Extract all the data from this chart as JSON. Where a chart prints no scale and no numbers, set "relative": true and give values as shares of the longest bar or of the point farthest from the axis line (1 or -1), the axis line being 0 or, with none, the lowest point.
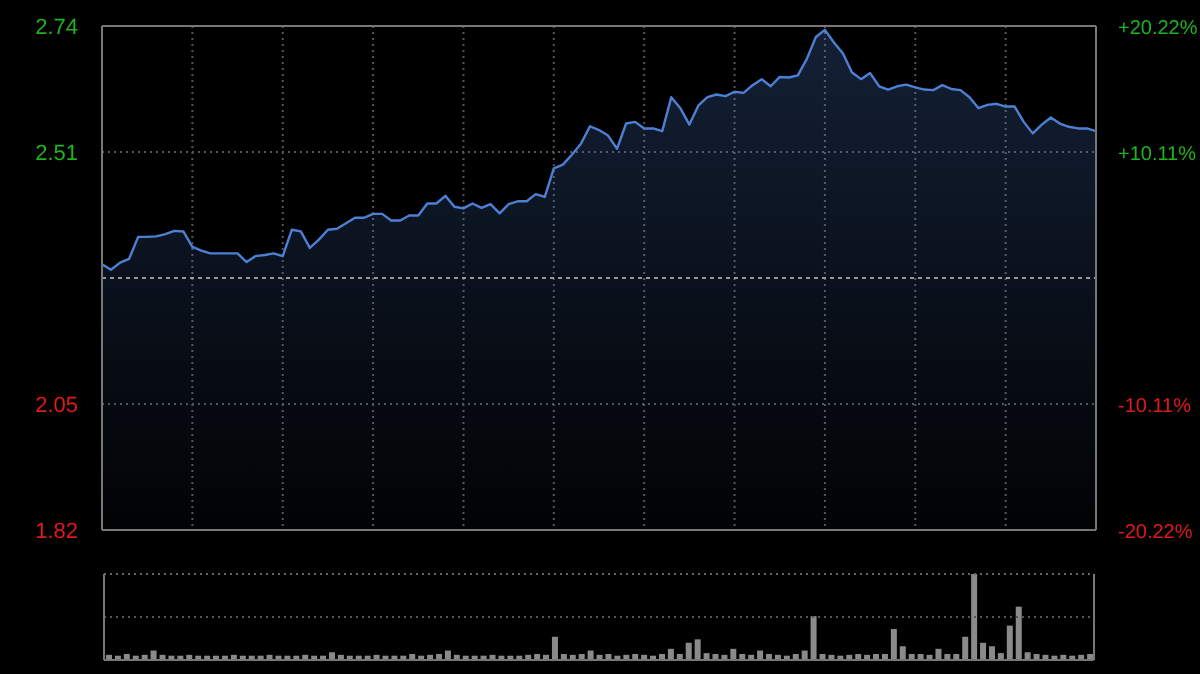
{
  "chart_data": [
    {
      "type": "area",
      "categories": [
        null,
        null,
        null,
        null,
        null,
        null,
        null,
        null,
        null,
        null,
        null,
        null,
        null,
        null,
        null,
        null,
        null,
        null,
        null,
        null,
        null,
        null,
        null,
        null,
        null,
        null,
        null,
        null,
        null,
        null,
        null,
        null,
        null,
        null,
        null,
        null,
        null,
        null,
        null,
        null,
        null,
        null,
        null,
        null,
        null,
        null,
        null,
        null,
        null,
        null,
        null,
        null,
        null,
        null,
        null,
        null,
        null,
        null,
        null,
        null,
        null,
        null,
        null,
        null,
        null,
        null,
        null,
        null,
        null,
        null,
        null,
        null,
        null,
        null,
        null,
        null,
        null,
        null,
        null,
        null,
        null,
        null,
        null,
        null,
        null,
        null,
        null,
        null,
        null,
        null,
        null,
        null,
        null,
        null,
        null,
        null,
        null,
        null,
        null,
        null,
        null,
        null,
        null,
        null,
        null,
        null,
        null,
        null,
        null,
        null,
        null
      ],
      "series": [
        {
          "color": "#4d80d4",
          "values": [
            2.305,
            2.295,
            2.308,
            2.315,
            2.355,
            2.355,
            2.356,
            2.36,
            2.366,
            2.365,
            2.337,
            2.33,
            2.325,
            2.325,
            2.325,
            2.325,
            2.309,
            2.32,
            2.322,
            2.325,
            2.32,
            2.368,
            2.365,
            2.335,
            2.35,
            2.368,
            2.37,
            2.38,
            2.39,
            2.39,
            2.397,
            2.397,
            2.385,
            2.385,
            2.394,
            2.394,
            2.416,
            2.416,
            2.43,
            2.41,
            2.407,
            2.416,
            2.408,
            2.415,
            2.398,
            2.415,
            2.42,
            2.42,
            2.433,
            2.428,
            2.48,
            2.487,
            2.505,
            2.525,
            2.557,
            2.55,
            2.54,
            2.516,
            2.562,
            2.565,
            2.553,
            2.553,
            2.548,
            2.61,
            2.59,
            2.56,
            2.595,
            2.61,
            2.615,
            2.612,
            2.62,
            2.618,
            2.632,
            2.643,
            2.63,
            2.647,
            2.646,
            2.65,
            2.68,
            2.72,
            2.733,
            2.71,
            2.69,
            2.655,
            2.643,
            2.654,
            2.63,
            2.624,
            2.63,
            2.633,
            2.628,
            2.624,
            2.623,
            2.632,
            2.625,
            2.623,
            2.61,
            2.59,
            2.596,
            2.598,
            2.593,
            2.593,
            2.565,
            2.544,
            2.56,
            2.573,
            2.562,
            2.556,
            2.553,
            2.553,
            2.548
          ]
        }
      ],
      "ylim": [
        1.82,
        2.74
      ],
      "yticks": [
        1.82,
        2.05,
        2.51,
        2.74
      ],
      "y2lim": [
        -20.22,
        20.22
      ],
      "y2ticks": [
        {
          "value": -20.22,
          "label": "-20.22%"
        },
        {
          "value": -10.11,
          "label": "-10.11%"
        },
        {
          "value": 10.11,
          "label": "+10.11%"
        },
        {
          "value": 20.22,
          "label": "+20.22%"
        }
      ],
      "ref_lines": [
        {
          "axis": "y",
          "value": 2.28,
          "label": null,
          "color": "#9a9a9a",
          "line_style": "dashed"
        }
      ],
      "grid": true,
      "tick_labels": "y",
      "legend": false
    },
    {
      "type": "bar",
      "relative": true,
      "ref_lines": [
        {
          "axis": "y",
          "value": 0.5,
          "label": null,
          "color": "#555555",
          "line_style": "dotted"
        }
      ],
      "tick_labels": false,
      "legend": false,
      "color": "#8a8a8a",
      "categories": [
        null,
        null,
        null,
        null,
        null,
        null,
        null,
        null,
        null,
        null,
        null,
        null,
        null,
        null,
        null,
        null,
        null,
        null,
        null,
        null,
        null,
        null,
        null,
        null,
        null,
        null,
        null,
        null,
        null,
        null,
        null,
        null,
        null,
        null,
        null,
        null,
        null,
        null,
        null,
        null,
        null,
        null,
        null,
        null,
        null,
        null,
        null,
        null,
        null,
        null,
        null,
        null,
        null,
        null,
        null,
        null,
        null,
        null,
        null,
        null,
        null,
        null,
        null,
        null,
        null,
        null,
        null,
        null,
        null,
        null,
        null,
        null,
        null,
        null,
        null,
        null,
        null,
        null,
        null,
        null,
        null,
        null,
        null,
        null,
        null,
        null,
        null,
        null,
        null,
        null,
        null,
        null,
        null,
        null,
        null,
        null,
        null,
        null,
        null,
        null,
        null,
        null,
        null,
        null,
        null,
        null,
        null,
        null,
        null,
        null,
        null
      ],
      "values": [
        0.06,
        0.05,
        0.07,
        0.05,
        0.06,
        0.11,
        0.06,
        0.05,
        0.05,
        0.06,
        0.05,
        0.05,
        0.05,
        0.05,
        0.06,
        0.05,
        0.05,
        0.05,
        0.06,
        0.05,
        0.05,
        0.05,
        0.06,
        0.05,
        0.05,
        0.09,
        0.06,
        0.05,
        0.05,
        0.05,
        0.06,
        0.05,
        0.05,
        0.05,
        0.07,
        0.05,
        0.06,
        0.07,
        0.11,
        0.06,
        0.05,
        0.05,
        0.05,
        0.06,
        0.05,
        0.05,
        0.05,
        0.06,
        0.07,
        0.06,
        0.27,
        0.07,
        0.06,
        0.07,
        0.11,
        0.06,
        0.07,
        0.05,
        0.06,
        0.07,
        0.06,
        0.05,
        0.07,
        0.13,
        0.07,
        0.2,
        0.24,
        0.08,
        0.07,
        0.06,
        0.13,
        0.07,
        0.06,
        0.11,
        0.07,
        0.06,
        0.05,
        0.07,
        0.11,
        0.51,
        0.07,
        0.06,
        0.05,
        0.06,
        0.07,
        0.06,
        0.07,
        0.07,
        0.36,
        0.16,
        0.07,
        0.07,
        0.06,
        0.13,
        0.07,
        0.07,
        0.27,
        1,
        0.2,
        0.16,
        0.08,
        0.4,
        0.62,
        0.09,
        0.07,
        0.06,
        0.05,
        0.06,
        0.05,
        0.06,
        0.07
      ]
    }
  ]
}
